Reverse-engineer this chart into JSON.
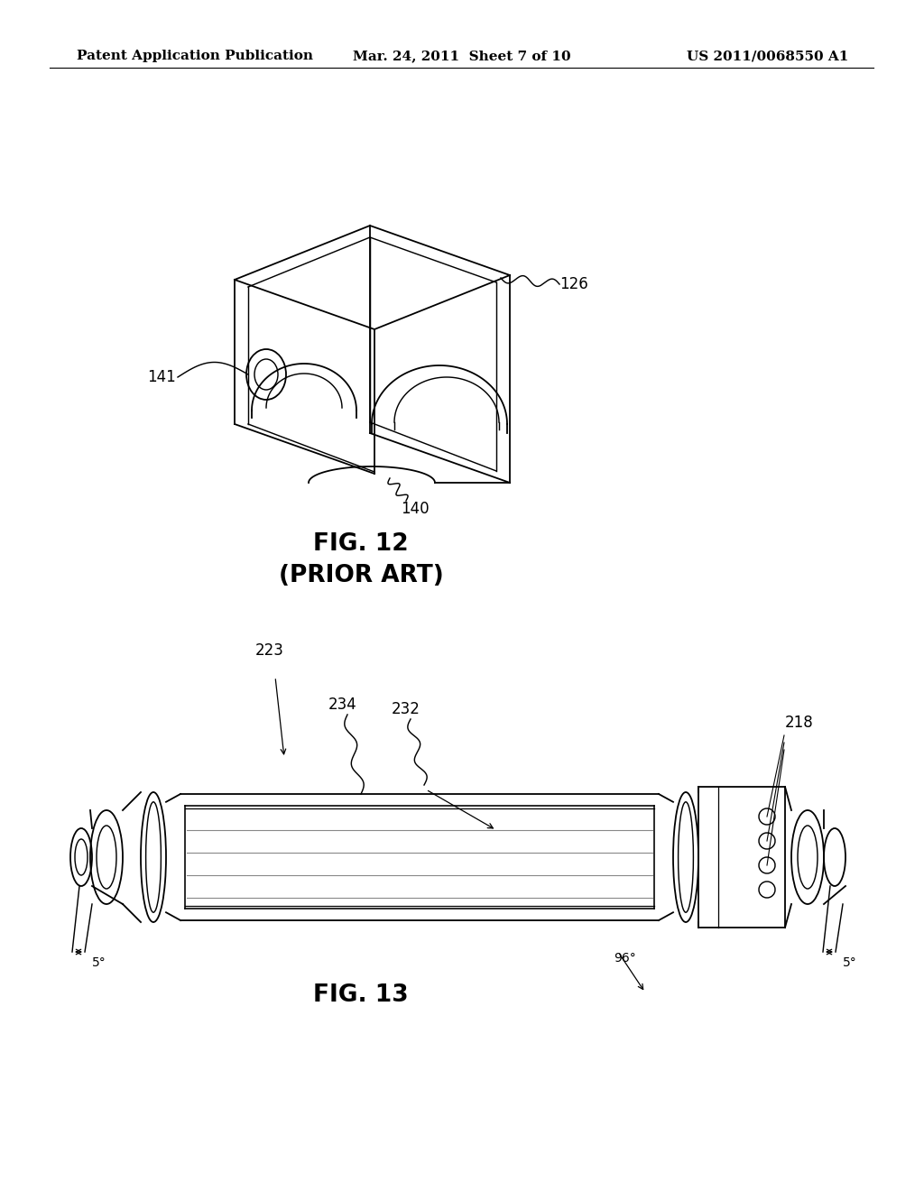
{
  "background_color": "#ffffff",
  "header_left": "Patent Application Publication",
  "header_center": "Mar. 24, 2011  Sheet 7 of 10",
  "header_right": "US 2011/0068550 A1",
  "line_color": "#000000",
  "text_color": "#000000",
  "fig12_caption": "FIG. 12",
  "fig12_subcaption": "(PRIOR ART)",
  "fig13_caption": "FIG. 13"
}
